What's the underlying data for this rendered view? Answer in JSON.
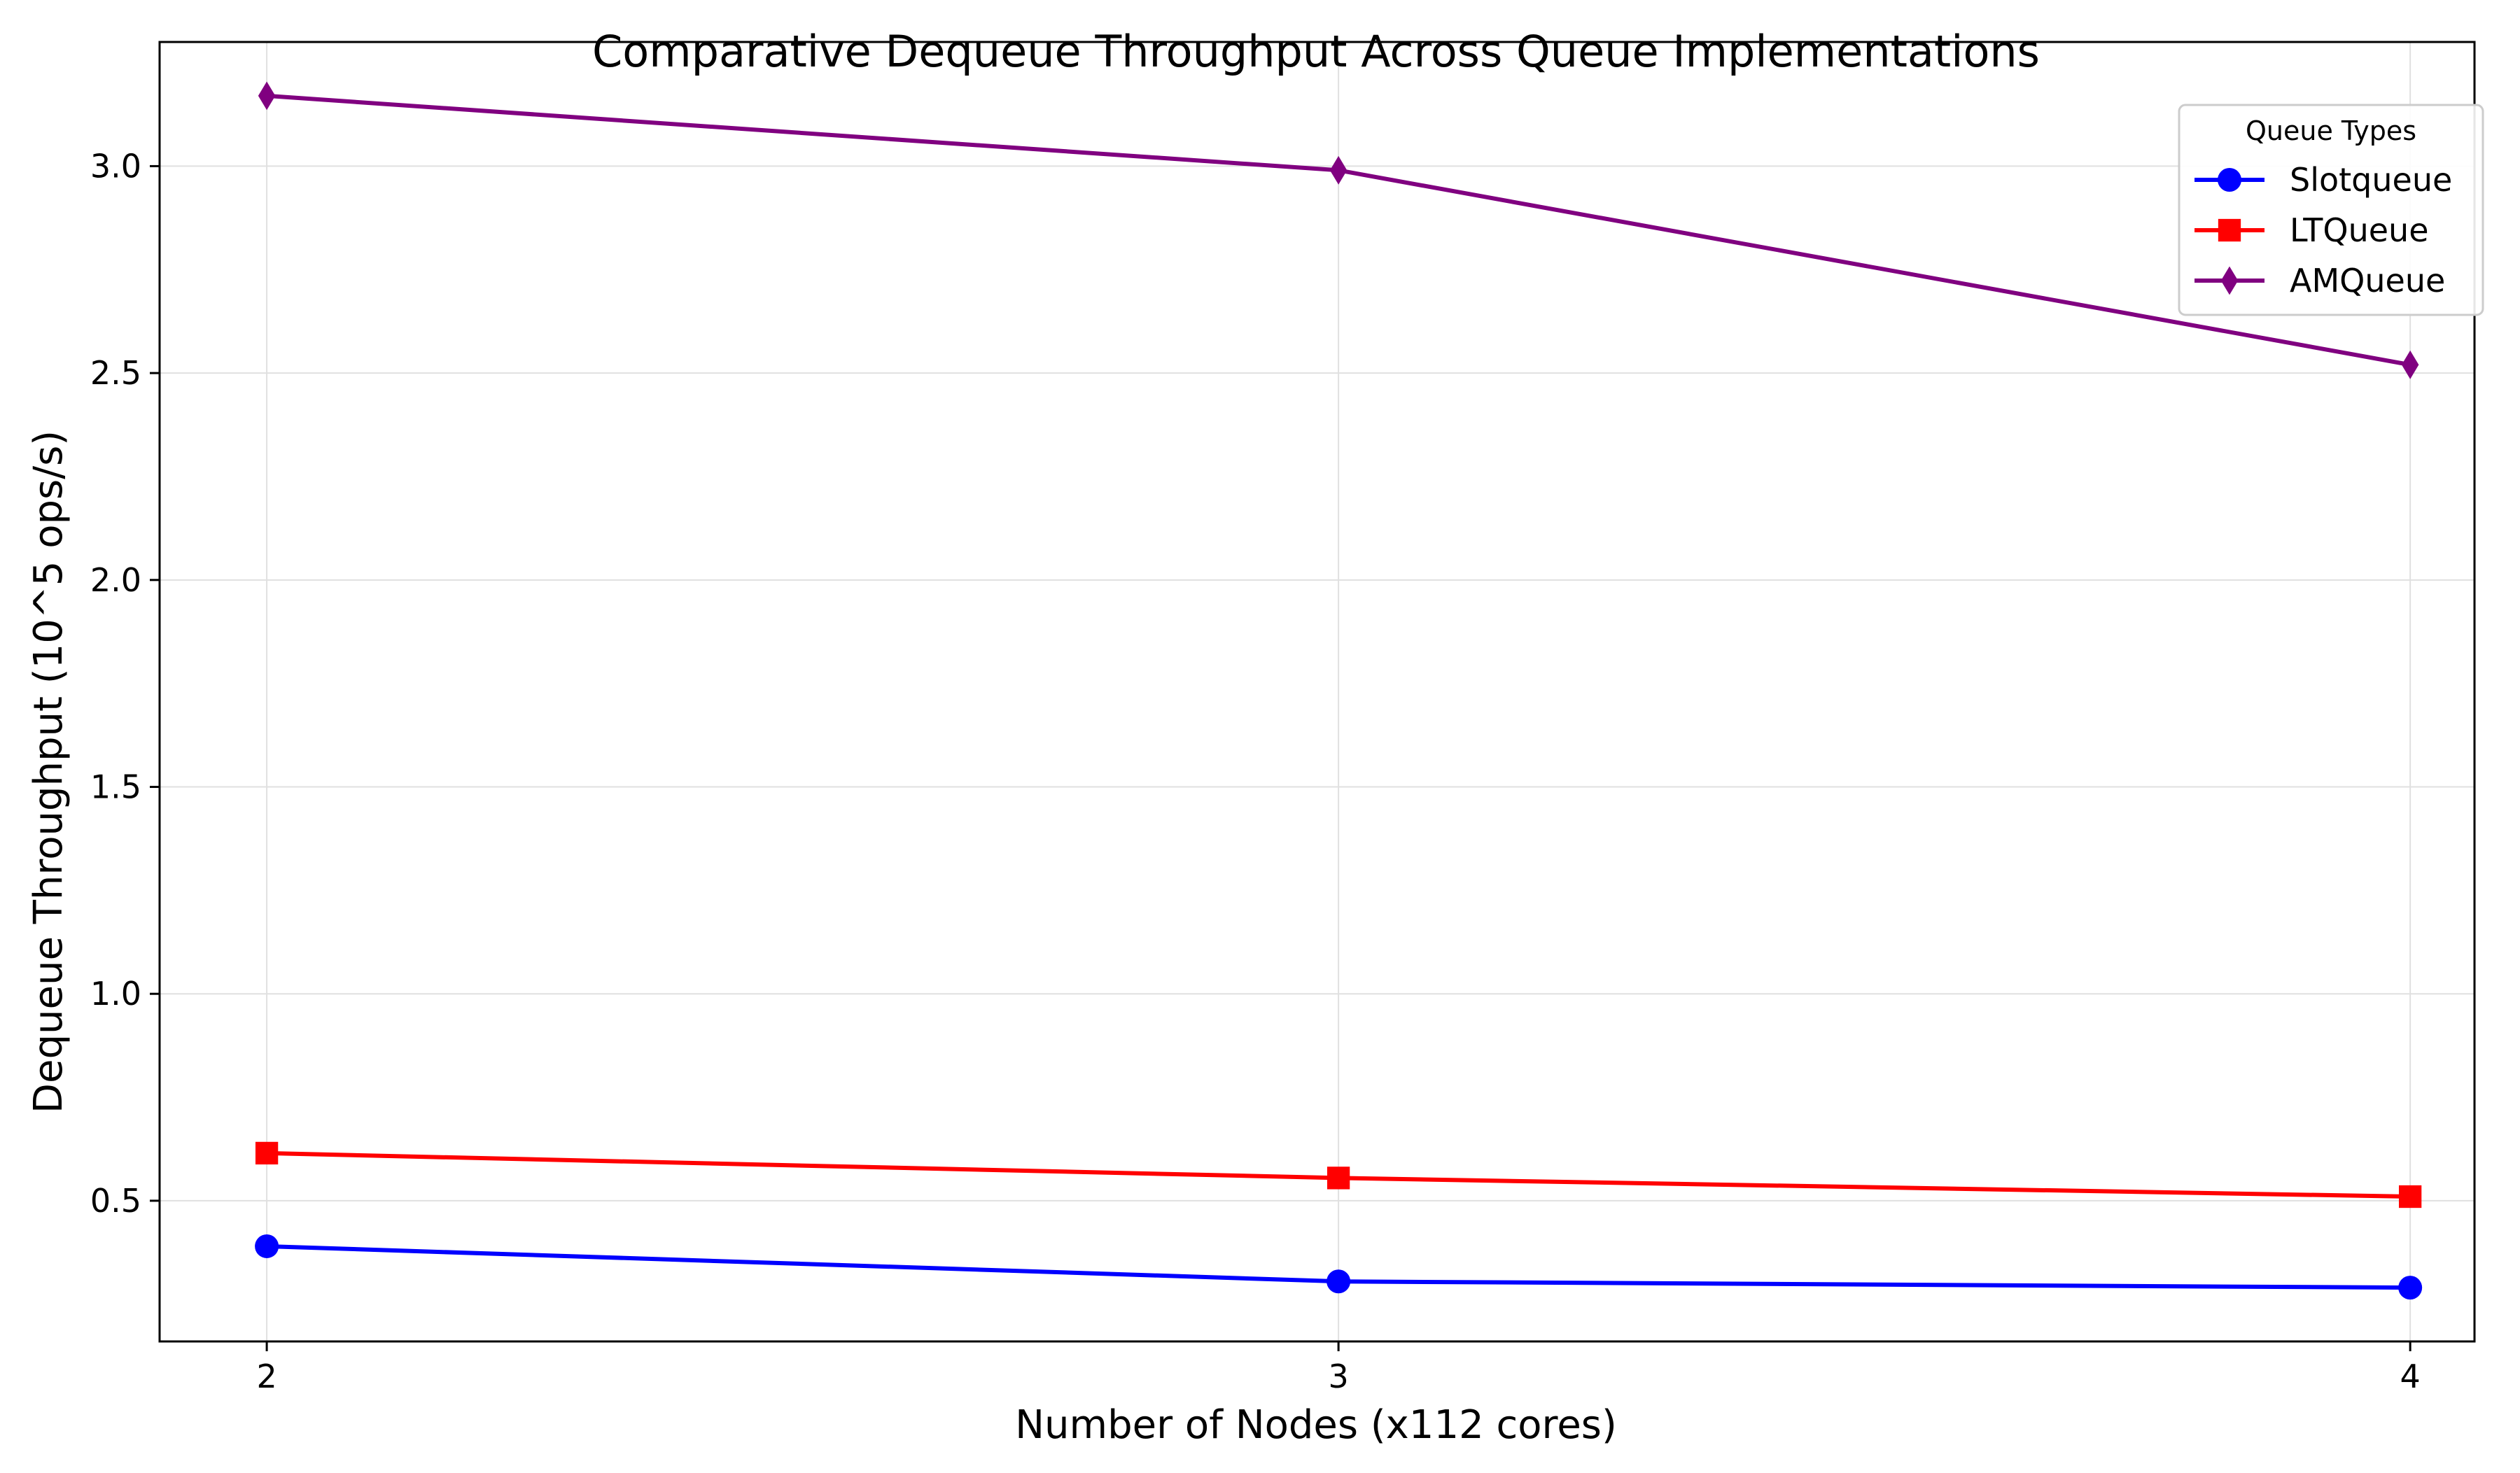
{
  "chart_data": {
    "type": "line",
    "title": "Comparative Dequeue Throughput Across Queue Implementations",
    "xlabel": "Number of Nodes (x112 cores)",
    "ylabel": "Dequeue Throughput (10^5 ops/s)",
    "x": [
      2,
      3,
      4
    ],
    "x_tick_labels": [
      "2",
      "3",
      "4"
    ],
    "xlim": [
      1.9,
      4.06
    ],
    "ylim": [
      0.16,
      3.3
    ],
    "y_ticks": [
      0.5,
      1.0,
      1.5,
      2.0,
      2.5,
      3.0
    ],
    "y_tick_labels": [
      "0.5",
      "1.0",
      "1.5",
      "2.0",
      "2.5",
      "3.0"
    ],
    "grid": true,
    "legend": {
      "title": "Queue Types",
      "placement": "top-right"
    },
    "series": [
      {
        "name": "Slotqueue",
        "color": "#0000ff",
        "marker": "circle",
        "values": [
          0.39,
          0.305,
          0.29
        ]
      },
      {
        "name": "LTQueue",
        "color": "#ff0000",
        "marker": "square",
        "values": [
          0.615,
          0.555,
          0.51
        ]
      },
      {
        "name": "AMQueue",
        "color": "#800080",
        "marker": "diamond",
        "values": [
          3.17,
          2.99,
          2.52
        ]
      }
    ]
  }
}
